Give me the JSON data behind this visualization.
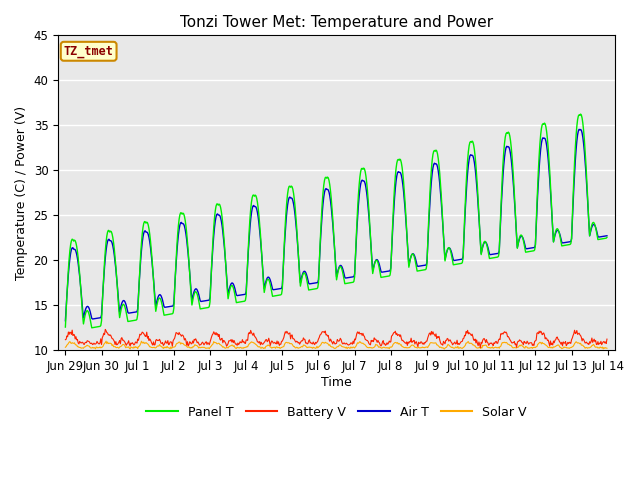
{
  "title": "Tonzi Tower Met: Temperature and Power",
  "xlabel": "Time",
  "ylabel": "Temperature (C) / Power (V)",
  "annotation": "TZ_tmet",
  "ylim": [
    10,
    45
  ],
  "background_color": "#e8e8e8",
  "panel_color": "#00ee00",
  "battery_color": "#ff2200",
  "air_color": "#0000cc",
  "solar_color": "#ffaa00",
  "legend_labels": [
    "Panel T",
    "Battery V",
    "Air T",
    "Solar V"
  ],
  "xtick_labels": [
    "Jun 29",
    "Jun 30",
    "Jul 1",
    "Jul 2",
    "Jul 3",
    "Jul 4",
    "Jul 5",
    "Jul 6",
    "Jul 7",
    "Jul 8",
    "Jul 9",
    "Jul 10",
    "Jul 11",
    "Jul 12",
    "Jul 13",
    "Jul 14"
  ],
  "xtick_positions": [
    0,
    1,
    2,
    3,
    4,
    5,
    6,
    7,
    8,
    9,
    10,
    11,
    12,
    13,
    14,
    15
  ]
}
